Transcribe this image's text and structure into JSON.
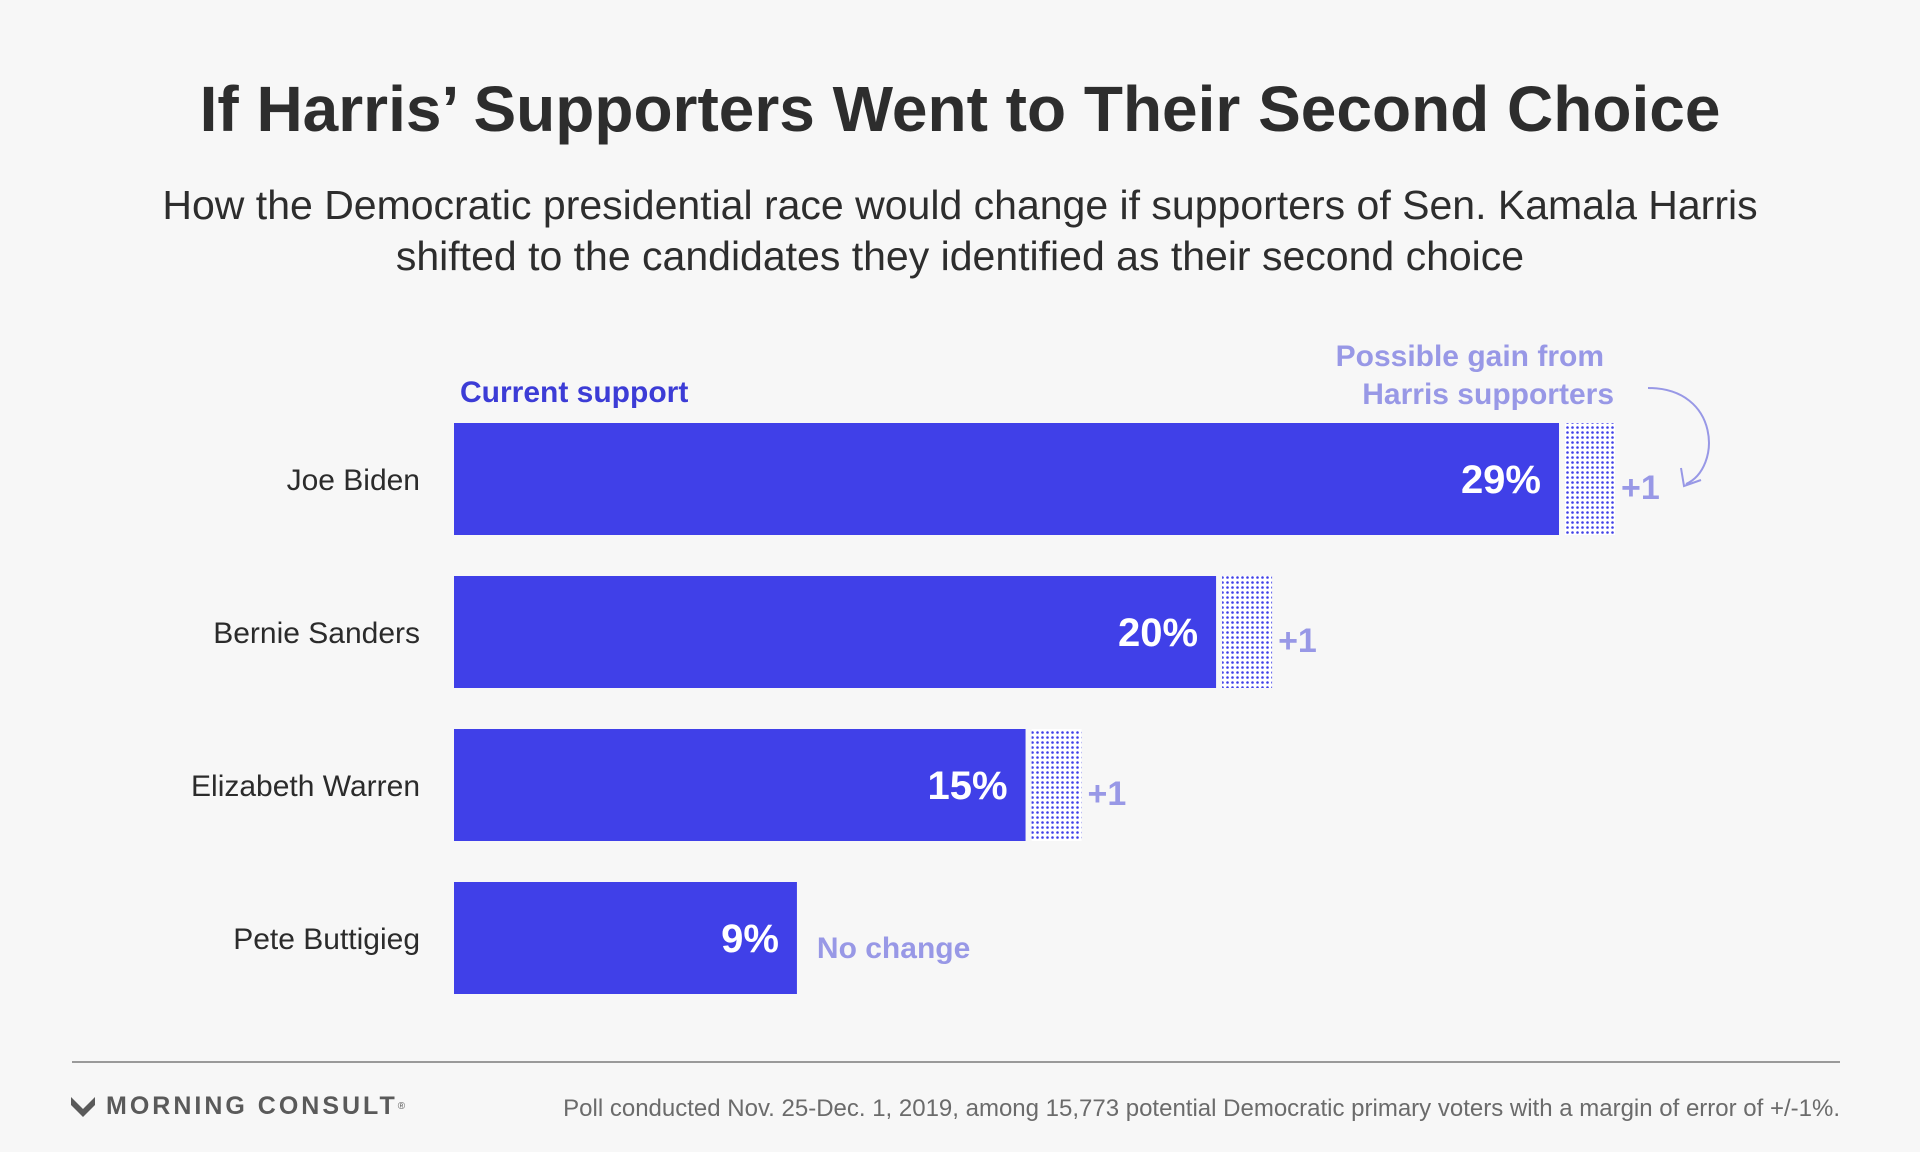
{
  "title": "If Harris’ Supporters Went to Their Second Choice",
  "subtitle": "How the Democratic presidential race would change if supporters of Sen. Kamala Harris shifted to the candidates they identified as their second choice",
  "legend": {
    "current": "Current support",
    "gain_line1": "Possible gain from",
    "gain_line2": "Harris supporters"
  },
  "colors": {
    "bar": "#4040e8",
    "gain_text": "#9898e6",
    "current_label": "#3c3cd6"
  },
  "chart_data": {
    "type": "bar",
    "orientation": "horizontal",
    "categories": [
      "Joe Biden",
      "Bernie Sanders",
      "Elizabeth Warren",
      "Pete Buttigieg"
    ],
    "series": [
      {
        "name": "Current support",
        "values": [
          29,
          20,
          15,
          9
        ],
        "labels": [
          "29%",
          "20%",
          "15%",
          "9%"
        ]
      },
      {
        "name": "Possible gain from Harris supporters",
        "values": [
          1,
          1,
          1,
          0
        ],
        "labels": [
          "+1",
          "+1",
          "+1",
          "No change"
        ]
      }
    ]
  },
  "footer": {
    "brand": "MORNING CONSULT",
    "brand_mark": "®",
    "note": "Poll conducted Nov. 25-Dec. 1, 2019, among 15,773 potential Democratic primary voters with a margin of error of +/-1%."
  }
}
